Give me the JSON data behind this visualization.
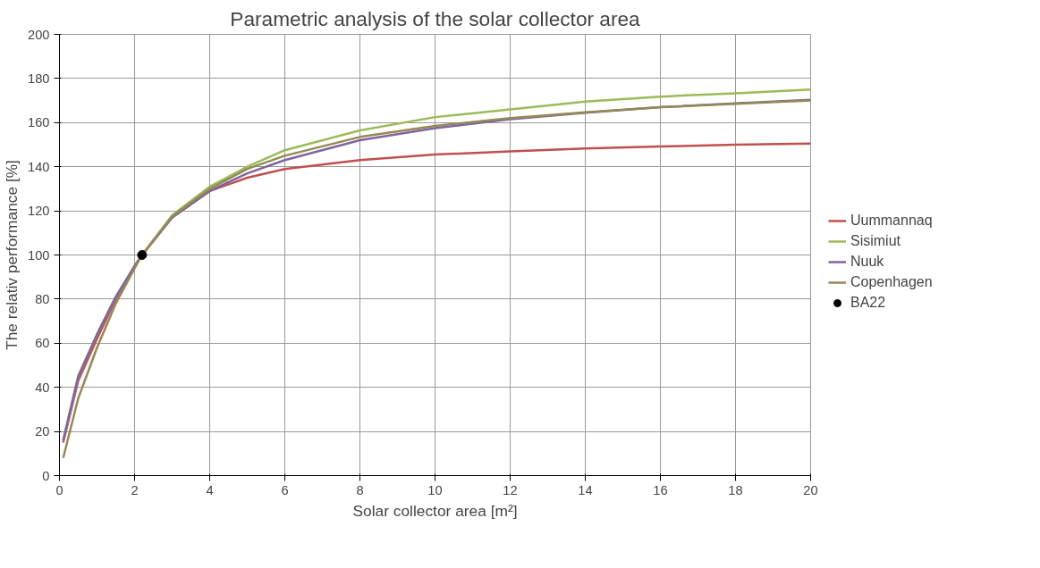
{
  "chart_data": {
    "type": "line",
    "title": "Parametric analysis of the solar collector area",
    "xlabel": "Solar collector area [m²]",
    "ylabel": "The relativ performance [%]",
    "x": [
      0.1,
      0.5,
      1,
      1.5,
      2,
      2.2,
      3,
      4,
      5,
      6,
      8,
      10,
      12,
      14,
      16,
      18,
      20
    ],
    "series": [
      {
        "name": "Uummannaq",
        "color": "#c0504d",
        "values": [
          15,
          43,
          62,
          80,
          95,
          100,
          117,
          129,
          135,
          139,
          143,
          145.5,
          147,
          148.3,
          149.2,
          150,
          150.5
        ]
      },
      {
        "name": "Sisimiut",
        "color": "#9bbb59",
        "values": [
          16,
          45,
          64,
          81,
          95,
          100,
          118,
          131,
          140,
          147.5,
          156.5,
          162.5,
          166,
          169.5,
          171.8,
          173.3,
          175
        ]
      },
      {
        "name": "Nuuk",
        "color": "#8064a2",
        "values": [
          16,
          45,
          64,
          81,
          95,
          100,
          117,
          129,
          137,
          143,
          152,
          157.5,
          161.5,
          164.5,
          167,
          168.7,
          170.3
        ]
      },
      {
        "name": "Copenhagen",
        "color": "#948a54",
        "values": [
          8,
          35,
          58,
          78,
          94,
          100,
          117.5,
          130,
          139,
          145,
          153.5,
          158.5,
          162,
          164.7,
          167,
          168.5,
          170
        ]
      },
      {
        "name": "BA22",
        "type": "scatter",
        "marker": "circle",
        "color": "#000000",
        "x": [
          2.2
        ],
        "values": [
          100
        ]
      }
    ],
    "xlim": [
      0,
      20
    ],
    "xticks": [
      0,
      2,
      4,
      6,
      8,
      10,
      12,
      14,
      16,
      18,
      20
    ],
    "ylim": [
      0,
      200
    ],
    "yticks": [
      0,
      20,
      40,
      60,
      80,
      100,
      120,
      140,
      160,
      180,
      200
    ],
    "grid": true,
    "legend": "right",
    "line_style": "solid"
  }
}
